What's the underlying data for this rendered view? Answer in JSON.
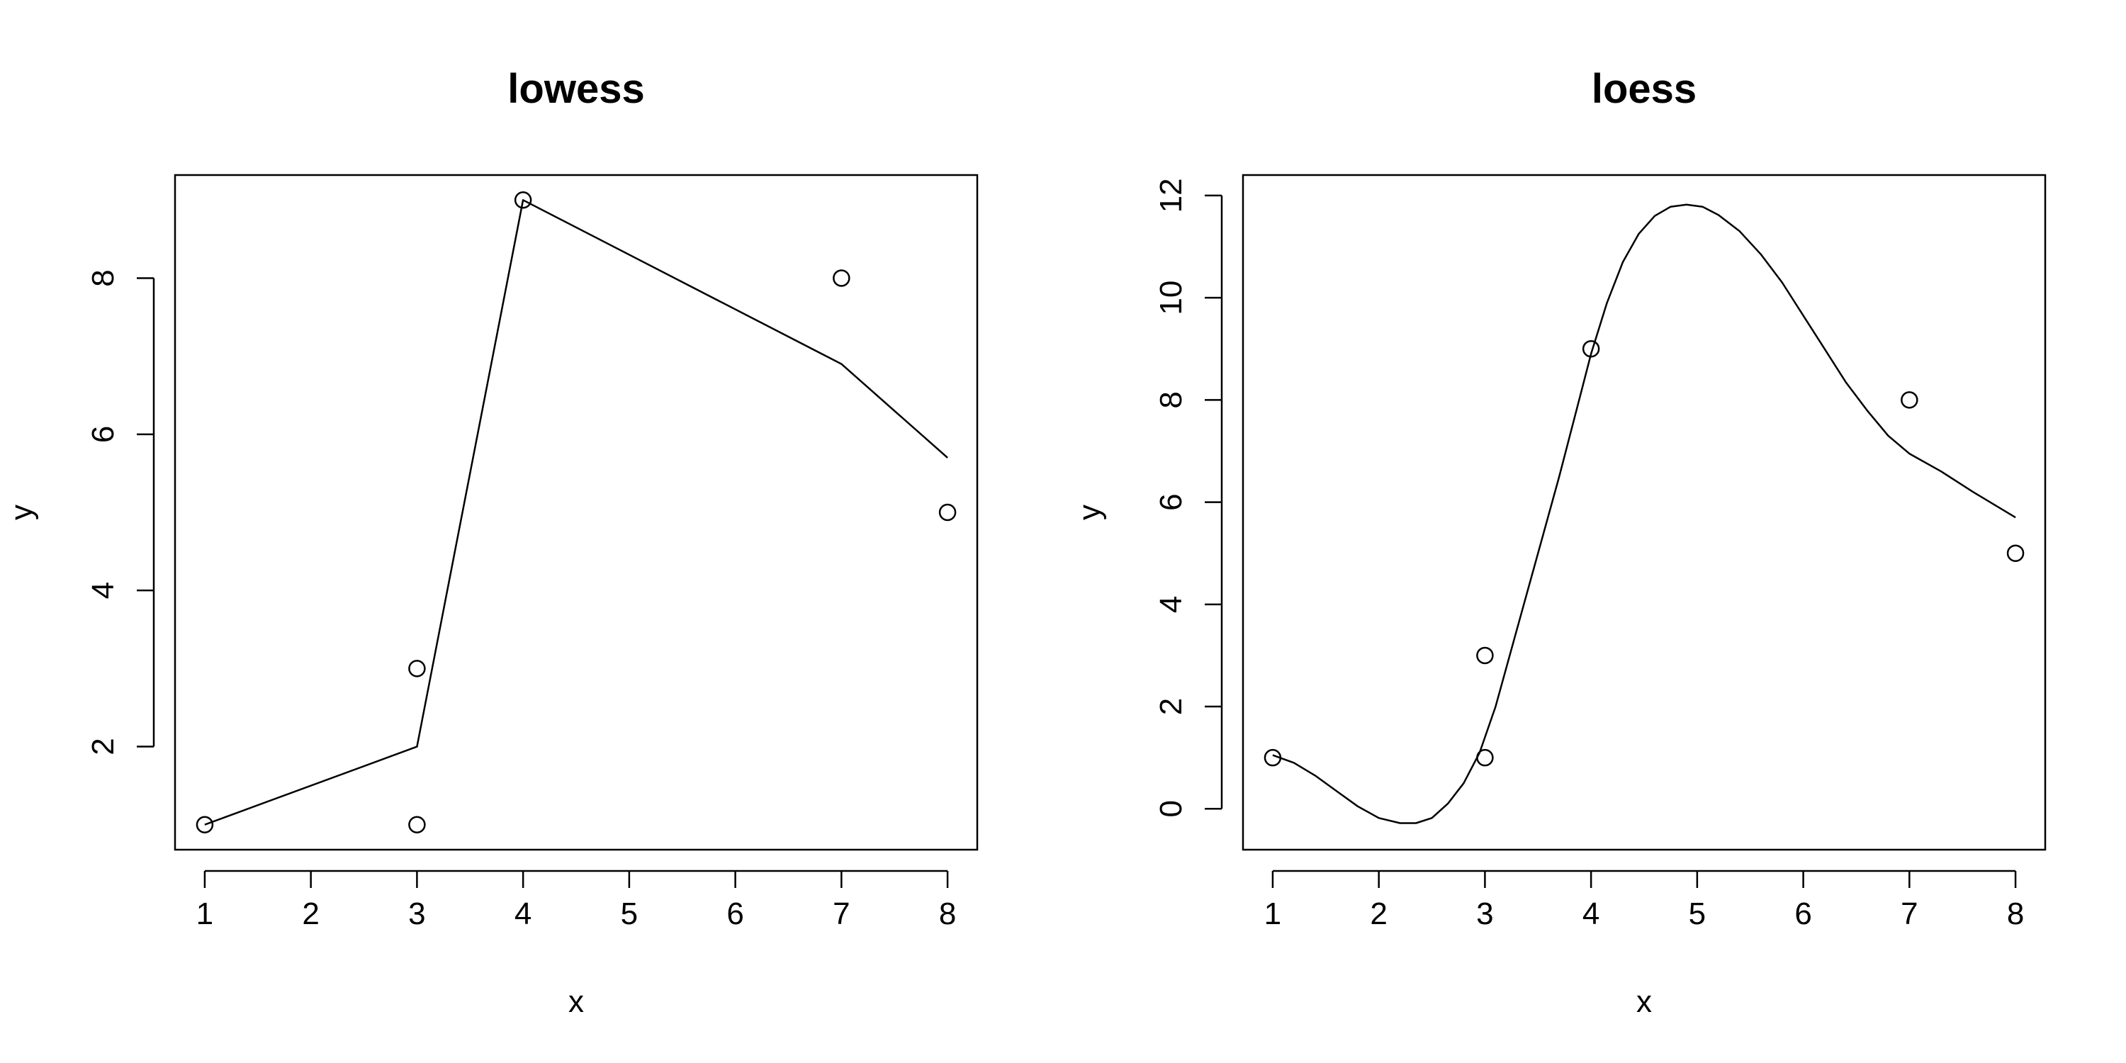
{
  "chart_data": [
    {
      "type": "scatter",
      "title": "lowess",
      "xlabel": "x",
      "ylabel": "y",
      "xlim": [
        0.72,
        8.28
      ],
      "ylim": [
        0.68,
        9.32
      ],
      "x_ticks": [
        1,
        2,
        3,
        4,
        5,
        6,
        7,
        8
      ],
      "y_ticks": [
        2,
        4,
        6,
        8
      ],
      "grid": false,
      "points": [
        {
          "x": 1,
          "y": 1
        },
        {
          "x": 3,
          "y": 3
        },
        {
          "x": 3,
          "y": 1
        },
        {
          "x": 4,
          "y": 9
        },
        {
          "x": 7,
          "y": 8
        },
        {
          "x": 8,
          "y": 5
        }
      ],
      "curve": [
        {
          "x": 1,
          "y": 1
        },
        {
          "x": 3,
          "y": 2
        },
        {
          "x": 4,
          "y": 9
        },
        {
          "x": 7,
          "y": 6.9
        },
        {
          "x": 8,
          "y": 5.7
        }
      ]
    },
    {
      "type": "scatter",
      "title": "loess",
      "xlabel": "x",
      "ylabel": "y",
      "xlim": [
        0.72,
        8.28
      ],
      "ylim": [
        -0.8,
        12.4
      ],
      "x_ticks": [
        1,
        2,
        3,
        4,
        5,
        6,
        7,
        8
      ],
      "y_ticks": [
        0,
        2,
        4,
        6,
        8,
        10,
        12
      ],
      "grid": false,
      "points": [
        {
          "x": 1,
          "y": 1
        },
        {
          "x": 3,
          "y": 3
        },
        {
          "x": 3,
          "y": 1
        },
        {
          "x": 4,
          "y": 9
        },
        {
          "x": 7,
          "y": 8
        },
        {
          "x": 8,
          "y": 5
        }
      ],
      "curve": [
        {
          "x": 1.0,
          "y": 1.05
        },
        {
          "x": 1.2,
          "y": 0.9
        },
        {
          "x": 1.4,
          "y": 0.65
        },
        {
          "x": 1.6,
          "y": 0.35
        },
        {
          "x": 1.8,
          "y": 0.05
        },
        {
          "x": 2.0,
          "y": -0.18
        },
        {
          "x": 2.2,
          "y": -0.28
        },
        {
          "x": 2.35,
          "y": -0.28
        },
        {
          "x": 2.5,
          "y": -0.18
        },
        {
          "x": 2.65,
          "y": 0.1
        },
        {
          "x": 2.8,
          "y": 0.5
        },
        {
          "x": 2.95,
          "y": 1.1
        },
        {
          "x": 3.1,
          "y": 2.0
        },
        {
          "x": 3.3,
          "y": 3.5
        },
        {
          "x": 3.5,
          "y": 5.0
        },
        {
          "x": 3.7,
          "y": 6.5
        },
        {
          "x": 3.9,
          "y": 8.1
        },
        {
          "x": 4.0,
          "y": 8.9
        },
        {
          "x": 4.15,
          "y": 9.9
        },
        {
          "x": 4.3,
          "y": 10.7
        },
        {
          "x": 4.45,
          "y": 11.25
        },
        {
          "x": 4.6,
          "y": 11.6
        },
        {
          "x": 4.75,
          "y": 11.78
        },
        {
          "x": 4.9,
          "y": 11.82
        },
        {
          "x": 5.05,
          "y": 11.78
        },
        {
          "x": 5.2,
          "y": 11.62
        },
        {
          "x": 5.4,
          "y": 11.3
        },
        {
          "x": 5.6,
          "y": 10.85
        },
        {
          "x": 5.8,
          "y": 10.3
        },
        {
          "x": 6.0,
          "y": 9.65
        },
        {
          "x": 6.2,
          "y": 9.0
        },
        {
          "x": 6.4,
          "y": 8.35
        },
        {
          "x": 6.6,
          "y": 7.8
        },
        {
          "x": 6.8,
          "y": 7.3
        },
        {
          "x": 7.0,
          "y": 6.95
        },
        {
          "x": 7.3,
          "y": 6.6
        },
        {
          "x": 7.6,
          "y": 6.2
        },
        {
          "x": 8.0,
          "y": 5.7
        }
      ]
    }
  ]
}
